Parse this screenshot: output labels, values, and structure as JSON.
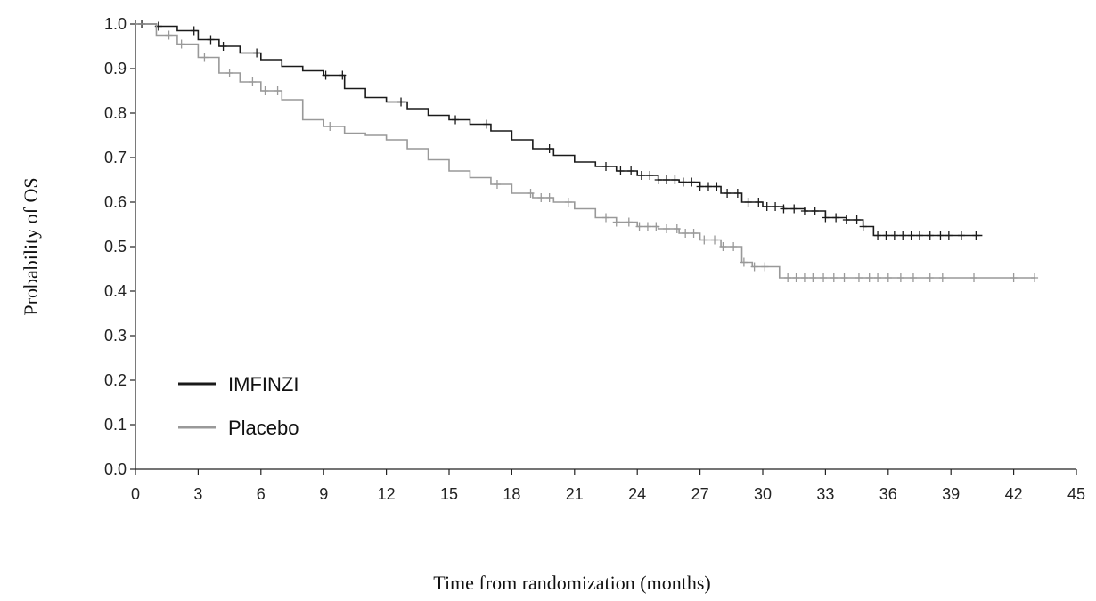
{
  "chart_data": {
    "type": "line",
    "subtype": "kaplan-meier",
    "title": "",
    "xlabel": "Time from randomization (months)",
    "ylabel": "Probability of OS",
    "xlim": [
      0,
      45
    ],
    "ylim": [
      0.0,
      1.0
    ],
    "x_ticks": [
      0,
      3,
      6,
      9,
      12,
      15,
      18,
      21,
      24,
      27,
      30,
      33,
      36,
      39,
      42,
      45
    ],
    "y_ticks": [
      "0.0",
      "0.1",
      "0.2",
      "0.3",
      "0.4",
      "0.5",
      "0.6",
      "0.7",
      "0.8",
      "0.9",
      "1.0"
    ],
    "grid": false,
    "legend_position": "bottom-left",
    "series": [
      {
        "name": "IMFINZI",
        "color": "#1a1a1a",
        "points": [
          [
            0,
            1.0
          ],
          [
            1,
            0.995
          ],
          [
            2,
            0.985
          ],
          [
            3,
            0.965
          ],
          [
            4,
            0.95
          ],
          [
            5,
            0.935
          ],
          [
            6,
            0.92
          ],
          [
            7,
            0.905
          ],
          [
            8,
            0.895
          ],
          [
            9,
            0.885
          ],
          [
            10,
            0.855
          ],
          [
            11,
            0.835
          ],
          [
            12,
            0.825
          ],
          [
            13,
            0.81
          ],
          [
            14,
            0.795
          ],
          [
            15,
            0.785
          ],
          [
            16,
            0.775
          ],
          [
            17,
            0.76
          ],
          [
            18,
            0.74
          ],
          [
            19,
            0.72
          ],
          [
            20,
            0.705
          ],
          [
            21,
            0.69
          ],
          [
            22,
            0.68
          ],
          [
            23,
            0.67
          ],
          [
            24,
            0.66
          ],
          [
            25,
            0.65
          ],
          [
            26,
            0.645
          ],
          [
            27,
            0.635
          ],
          [
            28,
            0.62
          ],
          [
            29,
            0.6
          ],
          [
            30,
            0.59
          ],
          [
            31,
            0.585
          ],
          [
            32,
            0.58
          ],
          [
            33,
            0.565
          ],
          [
            34,
            0.56
          ],
          [
            34.8,
            0.545
          ],
          [
            35.3,
            0.525
          ],
          [
            36,
            0.525
          ],
          [
            40.5,
            0.525
          ]
        ],
        "censor_x": [
          0.3,
          1.1,
          2.8,
          3.6,
          4.2,
          5.8,
          9.1,
          9.9,
          12.7,
          15.3,
          16.8,
          19.8,
          22.5,
          23.2,
          23.7,
          24.2,
          24.6,
          25.0,
          25.4,
          25.8,
          26.2,
          26.6,
          27.0,
          27.4,
          27.8,
          28.3,
          28.8,
          29.3,
          29.8,
          30.2,
          30.6,
          31.0,
          31.5,
          32.0,
          32.5,
          33.0,
          33.5,
          34.0,
          34.5,
          34.8,
          35.5,
          35.9,
          36.3,
          36.7,
          37.1,
          37.5,
          38.0,
          38.5,
          38.9,
          39.5,
          40.2
        ]
      },
      {
        "name": "Placebo",
        "color": "#999999",
        "points": [
          [
            0,
            1.0
          ],
          [
            1,
            0.975
          ],
          [
            2,
            0.955
          ],
          [
            3,
            0.925
          ],
          [
            4,
            0.89
          ],
          [
            5,
            0.87
          ],
          [
            6,
            0.85
          ],
          [
            7,
            0.83
          ],
          [
            8,
            0.785
          ],
          [
            9,
            0.77
          ],
          [
            10,
            0.755
          ],
          [
            11,
            0.75
          ],
          [
            12,
            0.74
          ],
          [
            13,
            0.72
          ],
          [
            14,
            0.695
          ],
          [
            15,
            0.67
          ],
          [
            16,
            0.655
          ],
          [
            17,
            0.64
          ],
          [
            18,
            0.62
          ],
          [
            19,
            0.61
          ],
          [
            20,
            0.6
          ],
          [
            21,
            0.585
          ],
          [
            22,
            0.565
          ],
          [
            23,
            0.555
          ],
          [
            24,
            0.545
          ],
          [
            25,
            0.54
          ],
          [
            26,
            0.53
          ],
          [
            27,
            0.515
          ],
          [
            28,
            0.5
          ],
          [
            29,
            0.465
          ],
          [
            29.5,
            0.455
          ],
          [
            30,
            0.455
          ],
          [
            30.8,
            0.43
          ],
          [
            43,
            0.43
          ]
        ],
        "censor_x": [
          1.6,
          2.2,
          3.3,
          4.5,
          5.6,
          6.2,
          6.8,
          9.3,
          17.3,
          18.9,
          19.4,
          19.8,
          20.7,
          22.5,
          23.0,
          23.6,
          24.1,
          24.5,
          24.9,
          25.4,
          25.9,
          26.3,
          26.7,
          27.2,
          27.7,
          28.1,
          28.6,
          29.1,
          29.6,
          30.1,
          31.2,
          31.6,
          32.0,
          32.4,
          32.9,
          33.4,
          33.9,
          34.6,
          35.1,
          35.5,
          36.0,
          36.6,
          37.2,
          38.0,
          38.6,
          40.1,
          42.0,
          43.0
        ]
      }
    ]
  }
}
